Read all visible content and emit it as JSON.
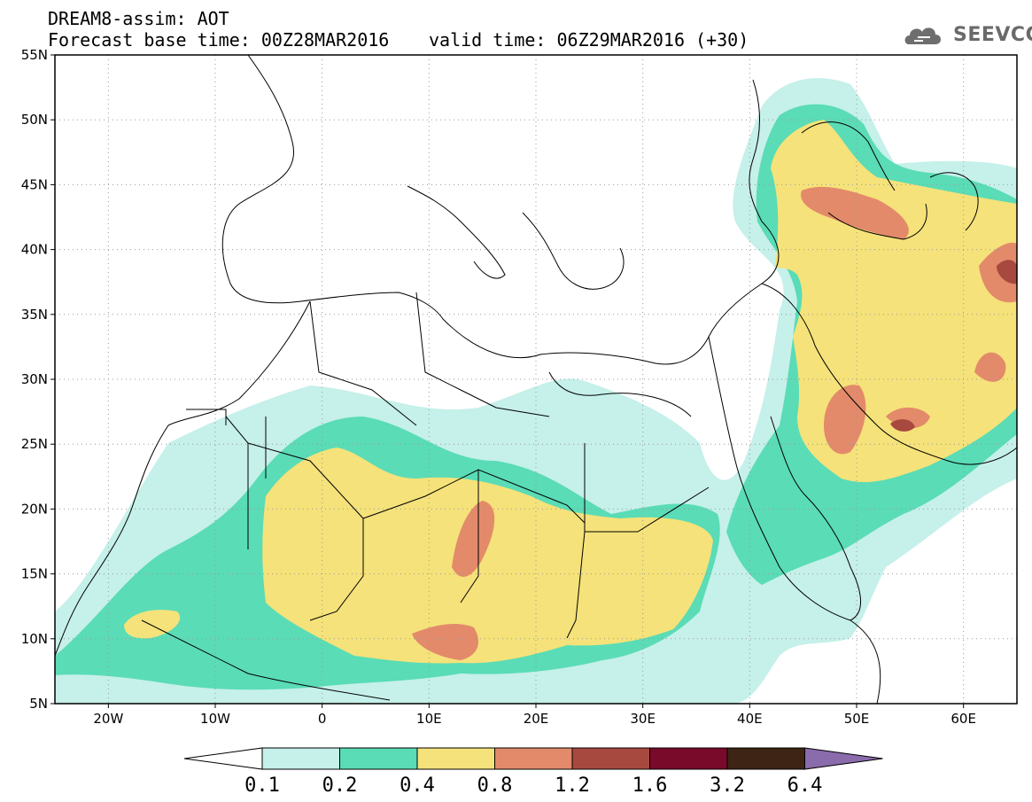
{
  "header": {
    "title": "DREAM8-assim: AOT",
    "base_time": "Forecast base time: 00Z28MAR2016",
    "valid_time": "valid time: 06Z29MAR2016 (+30)"
  },
  "logo": {
    "text": "SEEVCCC",
    "icon": "cloud-icon"
  },
  "axes": {
    "lat_labels": [
      "55N",
      "50N",
      "45N",
      "40N",
      "35N",
      "30N",
      "25N",
      "20N",
      "15N",
      "10N",
      "5N"
    ],
    "lat_values": [
      55,
      50,
      45,
      40,
      35,
      30,
      25,
      20,
      15,
      10,
      5
    ],
    "lon_labels": [
      "20W",
      "10W",
      "0",
      "10E",
      "20E",
      "30E",
      "40E",
      "50E",
      "60E"
    ],
    "lon_values": [
      -20,
      -10,
      0,
      10,
      20,
      30,
      40,
      50,
      60
    ],
    "lon_range": [
      -25,
      65
    ],
    "lat_range": [
      5,
      55
    ],
    "grid": "dotted"
  },
  "colorbar": {
    "labels": [
      "0.1",
      "0.2",
      "0.4",
      "0.8",
      "1.2",
      "1.6",
      "3.2",
      "6.4"
    ],
    "colors": [
      "#ffffff",
      "#c6f0ea",
      "#5adcb6",
      "#f5e27a",
      "#e38a6a",
      "#a8493f",
      "#7a0a2a",
      "#3d2414",
      "#8a6bab"
    ]
  },
  "aot_levels": {
    "0.1": "#c6f0ea",
    "0.2": "#5adcb6",
    "0.4": "#f5e27a",
    "0.8": "#e38a6a",
    "1.2": "#a8493f"
  }
}
